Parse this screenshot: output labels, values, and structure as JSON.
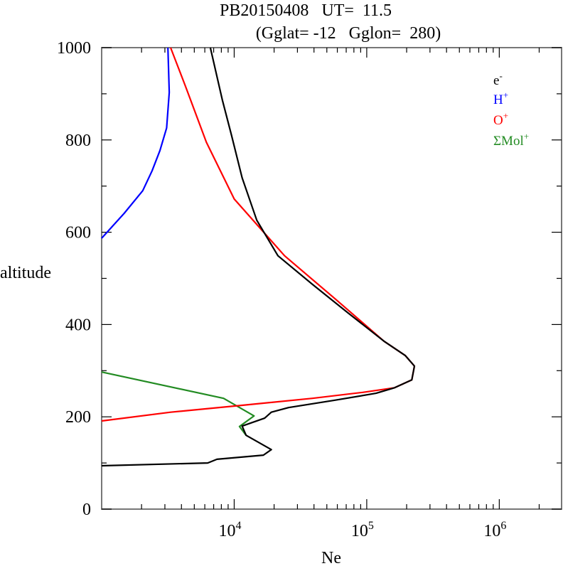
{
  "chart_data": {
    "type": "line",
    "title": "PB20150408   UT=  11.5",
    "subtitle": "(Gglat= -12   Gglon=  280)",
    "xlabel": "Ne",
    "ylabel": "altitude",
    "x_scale": "log",
    "xlim_log10": [
      3.0,
      6.47
    ],
    "ylim": [
      0,
      1000
    ],
    "yticks": [
      "0",
      "200",
      "400",
      "600",
      "800",
      "1000"
    ],
    "ytick_values": [
      0,
      200,
      400,
      600,
      800,
      1000
    ],
    "xticks": [
      {
        "base": "10",
        "exp": "4",
        "log10": 4
      },
      {
        "base": "10",
        "exp": "5",
        "log10": 5
      },
      {
        "base": "10",
        "exp": "6",
        "log10": 6
      }
    ],
    "legend_position": "top-right",
    "series": [
      {
        "name": "e",
        "sup": "-",
        "color": "#000000",
        "log10_ne": [
          3.0,
          3.8,
          3.87,
          4.22,
          4.28,
          4.09,
          4.06,
          4.23,
          4.28,
          4.41,
          4.76,
          5.07,
          5.21,
          5.34,
          5.36,
          5.29,
          5.13,
          4.86,
          4.59,
          4.33,
          4.17,
          4.06,
          3.98,
          3.91,
          3.82
        ],
        "alt": [
          94,
          100,
          108,
          117,
          129,
          160,
          180,
          197,
          210,
          220,
          236,
          251,
          263,
          280,
          310,
          333,
          364,
          425,
          487,
          549,
          626,
          718,
          810,
          887,
          1000
        ]
      },
      {
        "name": "H",
        "sup": "+",
        "color": "#0000ff",
        "log10_ne": [
          3.0,
          3.17,
          3.31,
          3.38,
          3.44,
          3.49,
          3.51,
          3.5
        ],
        "alt": [
          587,
          641,
          690,
          733,
          777,
          826,
          903,
          1000
        ]
      },
      {
        "name": "O",
        "sup": "+",
        "color": "#ff0000",
        "log10_ne": [
          3.0,
          3.52,
          4.06,
          4.59,
          4.97,
          5.21,
          5.34,
          5.36,
          5.29,
          5.13,
          4.76,
          4.38,
          4.0,
          3.79,
          3.63,
          3.52
        ],
        "alt": [
          191,
          210,
          225,
          240,
          253,
          263,
          280,
          310,
          333,
          364,
          456,
          549,
          672,
          795,
          918,
          1000
        ]
      },
      {
        "name": "ΣMol",
        "sup": "+",
        "color": "#228b22",
        "log10_ne": [
          3.0,
          3.92,
          4.15,
          4.04,
          4.09
        ],
        "alt": [
          297,
          240,
          202,
          179,
          160
        ]
      }
    ]
  }
}
